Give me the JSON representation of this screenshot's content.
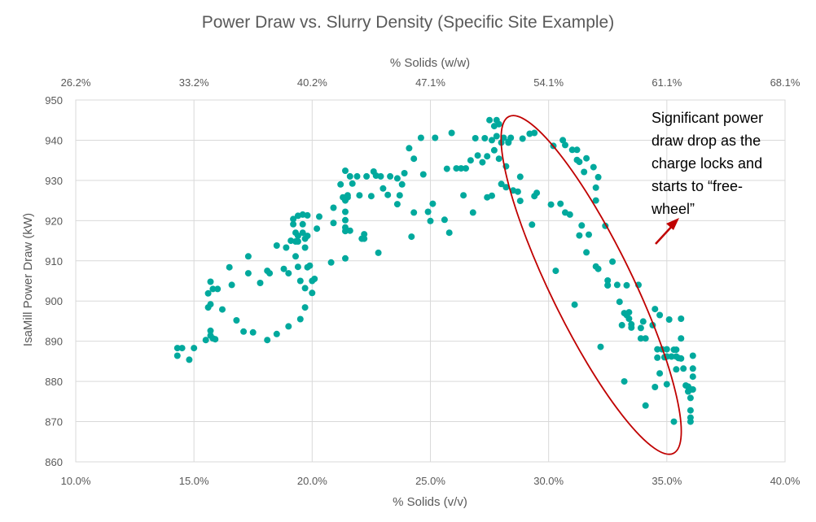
{
  "chart_data": {
    "type": "scatter",
    "title": "Power Draw vs. Slurry Density (Specific Site Example)",
    "xlabel": "% Solids (v/v)",
    "ylabel": "IsaMill Power Draw (kW)",
    "secondary_xlabel": "% Solids (w/w)",
    "xlim": [
      0.1,
      0.4
    ],
    "ylim": [
      860,
      950
    ],
    "x_ticks": [
      "10.0%",
      "15.0%",
      "20.0%",
      "25.0%",
      "30.0%",
      "35.0%",
      "40.0%"
    ],
    "y_ticks": [
      "860",
      "870",
      "880",
      "890",
      "900",
      "910",
      "920",
      "930",
      "940",
      "950"
    ],
    "secondary_x_ticks": [
      "26.2%",
      "33.2%",
      "40.2%",
      "47.1%",
      "54.1%",
      "61.1%",
      "68.1%"
    ],
    "grid": true,
    "series_color": "#00a99d",
    "annotation": {
      "lines": [
        "Significant power",
        "draw drop as the",
        "charge locks and",
        "starts to “free-",
        "wheel”"
      ],
      "color": "#c00000",
      "ellipse_center": [
        0.318,
        904
      ],
      "ellipse_radii": [
        0.048,
        65
      ]
    },
    "points": [
      [
        0.143,
        888.3
      ],
      [
        0.143,
        886.4
      ],
      [
        0.145,
        888.3
      ],
      [
        0.148,
        885.4
      ],
      [
        0.15,
        888.3
      ],
      [
        0.155,
        890.3
      ],
      [
        0.156,
        898.4
      ],
      [
        0.156,
        901.9
      ],
      [
        0.157,
        904.8
      ],
      [
        0.157,
        899.2
      ],
      [
        0.157,
        892.6
      ],
      [
        0.157,
        891.4
      ],
      [
        0.158,
        890.7
      ],
      [
        0.158,
        903.0
      ],
      [
        0.159,
        890.5
      ],
      [
        0.16,
        903.0
      ],
      [
        0.162,
        897.9
      ],
      [
        0.165,
        908.4
      ],
      [
        0.166,
        904.0
      ],
      [
        0.168,
        895.2
      ],
      [
        0.171,
        892.4
      ],
      [
        0.173,
        906.9
      ],
      [
        0.173,
        911.1
      ],
      [
        0.175,
        892.2
      ],
      [
        0.178,
        904.5
      ],
      [
        0.181,
        890.3
      ],
      [
        0.181,
        907.5
      ],
      [
        0.182,
        906.9
      ],
      [
        0.185,
        913.8
      ],
      [
        0.185,
        891.8
      ],
      [
        0.188,
        908.0
      ],
      [
        0.189,
        913.3
      ],
      [
        0.19,
        893.7
      ],
      [
        0.19,
        906.9
      ],
      [
        0.191,
        915.0
      ],
      [
        0.192,
        920.4
      ],
      [
        0.192,
        919.1
      ],
      [
        0.193,
        917.0
      ],
      [
        0.193,
        914.8
      ],
      [
        0.193,
        911.1
      ],
      [
        0.194,
        921.2
      ],
      [
        0.194,
        916.2
      ],
      [
        0.194,
        914.8
      ],
      [
        0.194,
        908.5
      ],
      [
        0.195,
        905.0
      ],
      [
        0.195,
        895.5
      ],
      [
        0.196,
        921.5
      ],
      [
        0.196,
        919.1
      ],
      [
        0.196,
        917.0
      ],
      [
        0.197,
        915.5
      ],
      [
        0.197,
        913.3
      ],
      [
        0.197,
        898.4
      ],
      [
        0.197,
        903.2
      ],
      [
        0.198,
        908.4
      ],
      [
        0.198,
        921.3
      ],
      [
        0.198,
        916.2
      ],
      [
        0.199,
        908.8
      ],
      [
        0.2,
        902.0
      ],
      [
        0.2,
        905.0
      ],
      [
        0.201,
        905.5
      ],
      [
        0.202,
        918.0
      ],
      [
        0.203,
        921.0
      ],
      [
        0.208,
        909.6
      ],
      [
        0.209,
        919.4
      ],
      [
        0.209,
        923.2
      ],
      [
        0.212,
        929.0
      ],
      [
        0.213,
        925.8
      ],
      [
        0.214,
        932.4
      ],
      [
        0.214,
        910.6
      ],
      [
        0.214,
        922.2
      ],
      [
        0.214,
        920.1
      ],
      [
        0.214,
        918.3
      ],
      [
        0.214,
        917.4
      ],
      [
        0.214,
        925.0
      ],
      [
        0.215,
        926.3
      ],
      [
        0.215,
        925.8
      ],
      [
        0.216,
        931.0
      ],
      [
        0.216,
        917.5
      ],
      [
        0.217,
        929.2
      ],
      [
        0.219,
        931.0
      ],
      [
        0.22,
        926.3
      ],
      [
        0.221,
        915.5
      ],
      [
        0.222,
        916.6
      ],
      [
        0.222,
        915.5
      ],
      [
        0.223,
        931.0
      ],
      [
        0.225,
        926.1
      ],
      [
        0.226,
        932.2
      ],
      [
        0.227,
        931.2
      ],
      [
        0.228,
        912.0
      ],
      [
        0.229,
        931.0
      ],
      [
        0.23,
        928.0
      ],
      [
        0.232,
        926.4
      ],
      [
        0.233,
        931.0
      ],
      [
        0.236,
        930.5
      ],
      [
        0.236,
        924.1
      ],
      [
        0.237,
        926.3
      ],
      [
        0.238,
        929.0
      ],
      [
        0.239,
        931.8
      ],
      [
        0.241,
        938.0
      ],
      [
        0.242,
        916.0
      ],
      [
        0.243,
        935.4
      ],
      [
        0.243,
        922.0
      ],
      [
        0.246,
        940.6
      ],
      [
        0.247,
        931.5
      ],
      [
        0.249,
        922.2
      ],
      [
        0.25,
        919.9
      ],
      [
        0.251,
        924.2
      ],
      [
        0.252,
        940.6
      ],
      [
        0.256,
        920.2
      ],
      [
        0.257,
        932.9
      ],
      [
        0.258,
        917.0
      ],
      [
        0.259,
        941.8
      ],
      [
        0.261,
        933.0
      ],
      [
        0.263,
        933.0
      ],
      [
        0.264,
        926.3
      ],
      [
        0.265,
        933.0
      ],
      [
        0.267,
        935.0
      ],
      [
        0.268,
        922.0
      ],
      [
        0.269,
        940.5
      ],
      [
        0.27,
        936.2
      ],
      [
        0.272,
        934.5
      ],
      [
        0.273,
        940.5
      ],
      [
        0.274,
        925.8
      ],
      [
        0.274,
        936.0
      ],
      [
        0.275,
        945.0
      ],
      [
        0.276,
        926.2
      ],
      [
        0.276,
        940.0
      ],
      [
        0.277,
        943.5
      ],
      [
        0.277,
        937.5
      ],
      [
        0.278,
        945.0
      ],
      [
        0.278,
        941.0
      ],
      [
        0.279,
        944.0
      ],
      [
        0.279,
        935.4
      ],
      [
        0.28,
        939.4
      ],
      [
        0.28,
        929.1
      ],
      [
        0.281,
        940.6
      ],
      [
        0.282,
        928.3
      ],
      [
        0.282,
        933.5
      ],
      [
        0.283,
        939.4
      ],
      [
        0.283,
        939.6
      ],
      [
        0.284,
        940.6
      ],
      [
        0.285,
        927.5
      ],
      [
        0.287,
        927.2
      ],
      [
        0.288,
        924.9
      ],
      [
        0.288,
        930.9
      ],
      [
        0.289,
        940.4
      ],
      [
        0.292,
        941.6
      ],
      [
        0.293,
        919.0
      ],
      [
        0.294,
        941.8
      ],
      [
        0.294,
        926.1
      ],
      [
        0.295,
        926.9
      ],
      [
        0.301,
        924.0
      ],
      [
        0.302,
        938.6
      ],
      [
        0.303,
        907.5
      ],
      [
        0.305,
        924.2
      ],
      [
        0.306,
        940.0
      ],
      [
        0.307,
        938.8
      ],
      [
        0.307,
        922.0
      ],
      [
        0.309,
        921.5
      ],
      [
        0.31,
        937.6
      ],
      [
        0.311,
        899.1
      ],
      [
        0.312,
        937.6
      ],
      [
        0.312,
        935.1
      ],
      [
        0.313,
        916.3
      ],
      [
        0.313,
        934.6
      ],
      [
        0.314,
        918.8
      ],
      [
        0.315,
        932.1
      ],
      [
        0.316,
        935.5
      ],
      [
        0.316,
        912.1
      ],
      [
        0.317,
        916.5
      ],
      [
        0.319,
        933.3
      ],
      [
        0.32,
        928.2
      ],
      [
        0.32,
        925.0
      ],
      [
        0.32,
        908.6
      ],
      [
        0.321,
        908.0
      ],
      [
        0.321,
        930.8
      ],
      [
        0.322,
        888.6
      ],
      [
        0.324,
        918.7
      ],
      [
        0.325,
        905.1
      ],
      [
        0.325,
        903.9
      ],
      [
        0.325,
        903.9
      ],
      [
        0.327,
        909.8
      ],
      [
        0.329,
        904.0
      ],
      [
        0.33,
        899.8
      ],
      [
        0.331,
        894.0
      ],
      [
        0.332,
        897.0
      ],
      [
        0.332,
        880.0
      ],
      [
        0.333,
        903.9
      ],
      [
        0.333,
        896.5
      ],
      [
        0.334,
        895.6
      ],
      [
        0.334,
        897.2
      ],
      [
        0.335,
        893.4
      ],
      [
        0.335,
        894.2
      ],
      [
        0.338,
        904.0
      ],
      [
        0.339,
        893.3
      ],
      [
        0.339,
        890.7
      ],
      [
        0.34,
        894.9
      ],
      [
        0.341,
        874.0
      ],
      [
        0.341,
        890.7
      ],
      [
        0.344,
        894.0
      ],
      [
        0.345,
        878.6
      ],
      [
        0.345,
        898.0
      ],
      [
        0.346,
        888.0
      ],
      [
        0.346,
        885.9
      ],
      [
        0.347,
        882.0
      ],
      [
        0.347,
        896.5
      ],
      [
        0.348,
        888.0
      ],
      [
        0.349,
        886.0
      ],
      [
        0.35,
        879.3
      ],
      [
        0.35,
        888.0
      ],
      [
        0.35,
        886.2
      ],
      [
        0.351,
        895.4
      ],
      [
        0.352,
        886.2
      ],
      [
        0.353,
        887.9
      ],
      [
        0.353,
        870.0
      ],
      [
        0.354,
        887.9
      ],
      [
        0.354,
        886.2
      ],
      [
        0.354,
        883.0
      ],
      [
        0.355,
        885.8
      ],
      [
        0.356,
        895.6
      ],
      [
        0.356,
        890.7
      ],
      [
        0.356,
        885.7
      ],
      [
        0.357,
        883.2
      ],
      [
        0.358,
        879.0
      ],
      [
        0.359,
        878.7
      ],
      [
        0.359,
        877.5
      ],
      [
        0.36,
        875.9
      ],
      [
        0.36,
        872.8
      ],
      [
        0.36,
        870.0
      ],
      [
        0.36,
        871.0
      ],
      [
        0.36,
        878.0
      ],
      [
        0.361,
        886.4
      ],
      [
        0.361,
        883.2
      ],
      [
        0.361,
        881.2
      ],
      [
        0.361,
        878.0
      ]
    ]
  }
}
